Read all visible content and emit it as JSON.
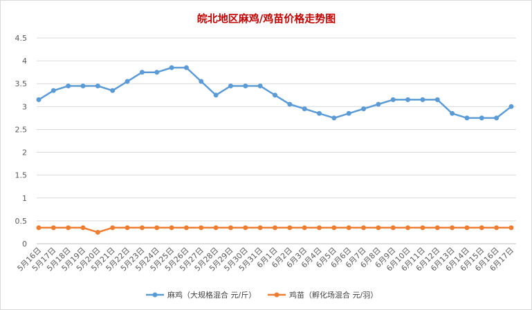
{
  "chart_data": {
    "type": "line",
    "title": "皖北地区麻鸡/鸡苗价格走势图",
    "xlabel": "",
    "ylabel": "",
    "ylim": [
      0,
      4.5
    ],
    "yticks": [
      "0",
      "0.5",
      "1",
      "1.5",
      "2",
      "2.5",
      "3",
      "3.5",
      "4",
      "4.5"
    ],
    "grid": true,
    "legend_position": "bottom",
    "categories": [
      "5月16日",
      "5月17日",
      "5月18日",
      "5月19日",
      "5月20日",
      "5月21日",
      "5月22日",
      "5月23日",
      "5月24日",
      "5月25日",
      "5月26日",
      "5月27日",
      "5月28日",
      "5月29日",
      "5月30日",
      "5月31日",
      "6月1日",
      "6月2日",
      "6月3日",
      "6月4日",
      "6月5日",
      "6月6日",
      "6月7日",
      "6月8日",
      "6月9日",
      "6月10日",
      "6月11日",
      "6月12日",
      "6月13日",
      "6月14日",
      "6月15日",
      "6月16日",
      "6月17日"
    ],
    "series": [
      {
        "name": "麻鸡（大规格混合 元/斤）",
        "color": "#5b9bd5",
        "values": [
          3.15,
          3.35,
          3.45,
          3.45,
          3.45,
          3.35,
          3.55,
          3.75,
          3.75,
          3.85,
          3.85,
          3.55,
          3.25,
          3.45,
          3.45,
          3.45,
          3.25,
          3.05,
          2.95,
          2.85,
          2.75,
          2.85,
          2.95,
          3.05,
          3.15,
          3.15,
          3.15,
          3.15,
          2.85,
          2.75,
          2.75,
          2.75,
          3.0
        ]
      },
      {
        "name": "鸡苗（孵化场混合 元/羽）",
        "color": "#ed7d31",
        "values": [
          0.35,
          0.35,
          0.35,
          0.35,
          0.25,
          0.35,
          0.35,
          0.35,
          0.35,
          0.35,
          0.35,
          0.35,
          0.35,
          0.35,
          0.35,
          0.35,
          0.35,
          0.35,
          0.35,
          0.35,
          0.35,
          0.35,
          0.35,
          0.35,
          0.35,
          0.35,
          0.35,
          0.35,
          0.35,
          0.35,
          0.35,
          0.35,
          0.35
        ]
      }
    ]
  }
}
